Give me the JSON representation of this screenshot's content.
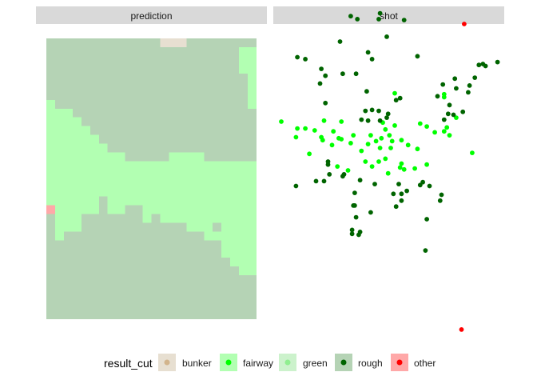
{
  "chart_data": {
    "type": "faceted-heatmap-scatter",
    "facets": [
      "prediction",
      "shot"
    ],
    "colors": {
      "bunker": "#e7dfd1",
      "fairway": "#b2ffb2",
      "green": "#ccf2cc",
      "rough": "#b5d3b5",
      "other": "#ffa8a8"
    },
    "point_colors": {
      "bunker": "#d2b48c",
      "fairway": "#00ff00",
      "green": "#90ee90",
      "rough": "#006400",
      "other": "#ff0000"
    },
    "legend": {
      "title": "result_cut",
      "position": "bottom",
      "entries": [
        {
          "key": "bunker",
          "label": "bunker"
        },
        {
          "key": "fairway",
          "label": "fairway"
        },
        {
          "key": "green",
          "label": "green"
        },
        {
          "key": "rough",
          "label": "rough"
        },
        {
          "key": "other",
          "label": "other"
        }
      ]
    },
    "xlim": [
      0,
      24
    ],
    "ylim": [
      0,
      32
    ],
    "prediction_grid": {
      "ncols": 24,
      "nrows": 32,
      "row_order": "top-to-bottom",
      "fairway_spans_by_row": [
        [],
        [
          [
            22,
            23
          ]
        ],
        [
          [
            22,
            23
          ]
        ],
        [
          [
            22,
            23
          ]
        ],
        [
          [
            23,
            23
          ]
        ],
        [
          [
            23,
            23
          ]
        ],
        [
          [
            23,
            23
          ]
        ],
        [
          [
            0,
            0
          ],
          [
            23,
            23
          ]
        ],
        [
          [
            0,
            2
          ]
        ],
        [
          [
            0,
            3
          ]
        ],
        [
          [
            0,
            4
          ]
        ],
        [
          [
            0,
            5
          ]
        ],
        [
          [
            0,
            6
          ]
        ],
        [
          [
            0,
            8
          ],
          [
            14,
            17
          ]
        ],
        [
          [
            0,
            23
          ]
        ],
        [
          [
            0,
            23
          ]
        ],
        [
          [
            0,
            23
          ]
        ],
        [
          [
            0,
            23
          ]
        ],
        [
          [
            0,
            5
          ],
          [
            7,
            23
          ]
        ],
        [
          [
            1,
            5
          ],
          [
            7,
            8
          ],
          [
            11,
            23
          ]
        ],
        [
          [
            1,
            3
          ],
          [
            11,
            11
          ],
          [
            13,
            23
          ]
        ],
        [
          [
            1,
            3
          ],
          [
            16,
            18
          ],
          [
            20,
            23
          ]
        ],
        [
          [
            1,
            1
          ],
          [
            18,
            23
          ]
        ],
        [
          [
            20,
            23
          ]
        ],
        [
          [
            20,
            23
          ]
        ],
        [
          [
            21,
            23
          ]
        ],
        [
          [
            22,
            23
          ]
        ],
        [],
        [],
        [],
        [],
        []
      ],
      "bunker_spans_by_row": [
        [
          [
            13,
            15
          ]
        ]
      ],
      "other_cells": [
        [
          0,
          19
        ]
      ]
    },
    "shot_points": {
      "fairway": [
        [
          0.1,
          17
        ],
        [
          1.3,
          17.7
        ],
        [
          1.9,
          17.7
        ],
        [
          2.6,
          17.9
        ],
        [
          3.2,
          18.9
        ],
        [
          3.3,
          16.9
        ],
        [
          4.0,
          18.0
        ],
        [
          4.6,
          18.8
        ],
        [
          5.5,
          18.4
        ],
        [
          5.3,
          19.2
        ],
        [
          6.1,
          20.0
        ],
        [
          6.8,
          18.4
        ],
        [
          7.2,
          19.0
        ],
        [
          7.5,
          19.7
        ],
        [
          8.2,
          18.4
        ],
        [
          9.1,
          18.9
        ],
        [
          9.6,
          19.4
        ],
        [
          10.3,
          19.8
        ],
        [
          11.6,
          18.1
        ],
        [
          12.7,
          18.4
        ],
        [
          14.4,
          20.2
        ],
        [
          10.5,
          17.2
        ],
        [
          11.0,
          17.5
        ],
        [
          12.5,
          17.6
        ],
        [
          13.2,
          16.6
        ],
        [
          1.2,
          18.6
        ],
        [
          3.1,
          18.6
        ],
        [
          4.4,
          18.7
        ],
        [
          6.6,
          19.3
        ],
        [
          8.3,
          19.7
        ],
        [
          5.1,
          22.0
        ],
        [
          4.3,
          21.6
        ],
        [
          6.4,
          21.1
        ],
        [
          6.9,
          21.6
        ],
        [
          7.4,
          21.1
        ],
        [
          7.9,
          20.8
        ],
        [
          8.1,
          22.3
        ],
        [
          9.0,
          21.7
        ],
        [
          9.3,
          21.9
        ],
        [
          9.1,
          21.3
        ],
        [
          10.1,
          21.8
        ],
        [
          11.0,
          21.4
        ],
        [
          8.4,
          19.0
        ],
        [
          7.7,
          17.1
        ],
        [
          7.9,
          17.8
        ],
        [
          8.6,
          17.4
        ],
        [
          3.9,
          19.4
        ],
        [
          4.6,
          17.0
        ],
        [
          8.6,
          14.1
        ],
        [
          12.3,
          14.2
        ],
        [
          12.3,
          14.5
        ],
        [
          2.2,
          20.3
        ],
        [
          12.3,
          18.0
        ],
        [
          7.6,
          18.7
        ]
      ],
      "rough": [
        [
          5.3,
          6.2
        ],
        [
          5.8,
          6.5
        ],
        [
          7.5,
          5.9
        ],
        [
          7.4,
          6.5
        ],
        [
          9.3,
          6.6
        ],
        [
          8.0,
          8.3
        ],
        [
          4.5,
          8.8
        ],
        [
          6.6,
          9.9
        ],
        [
          6.9,
          10.6
        ],
        [
          16.3,
          10.9
        ],
        [
          15.2,
          11.1
        ],
        [
          15.4,
          11.3
        ],
        [
          14.9,
          11.2
        ],
        [
          14.6,
          12.5
        ],
        [
          14.2,
          13.3
        ],
        [
          14.1,
          14.0
        ],
        [
          6.5,
          13.9
        ],
        [
          5.7,
          12.1
        ],
        [
          4.7,
          12.1
        ],
        [
          2.7,
          23.1
        ],
        [
          3.7,
          22.4
        ],
        [
          3.6,
          21.1
        ],
        [
          3.6,
          21.4
        ],
        [
          4.8,
          22.4
        ],
        [
          5.5,
          25.6
        ],
        [
          5.6,
          24.3
        ],
        [
          6.0,
          23.0
        ],
        [
          8.9,
          23.4
        ],
        [
          9.1,
          24.4
        ],
        [
          8.7,
          25.7
        ],
        [
          10.5,
          23.5
        ],
        [
          11.0,
          27.0
        ],
        [
          9.5,
          24.1
        ],
        [
          8.5,
          24.4
        ],
        [
          10.7,
          23.2
        ],
        [
          13.2,
          13.6
        ],
        [
          13.1,
          12.6
        ],
        [
          12.2,
          13.2
        ],
        [
          12.1,
          24.5
        ],
        [
          11.2,
          23.6
        ],
        [
          12.0,
          25.1
        ],
        [
          6.8,
          26.3
        ],
        [
          5.7,
          26.8
        ],
        [
          5.4,
          28.1
        ],
        [
          5.4,
          28.5
        ],
        [
          5.9,
          28.6
        ],
        [
          6.0,
          28.3
        ],
        [
          10.9,
          30.2
        ],
        [
          1.3,
          10.4
        ],
        [
          1.9,
          10.6
        ],
        [
          3.1,
          11.6
        ],
        [
          3.0,
          13.1
        ],
        [
          3.4,
          12.3
        ],
        [
          6.4,
          15.9
        ],
        [
          7.4,
          15.9
        ],
        [
          8.7,
          14.8
        ],
        [
          9.0,
          14.6
        ],
        [
          8.1,
          16.2
        ],
        [
          6.9,
          15.8
        ],
        [
          12.6,
          16.2
        ],
        [
          13.0,
          16.3
        ],
        [
          13.7,
          16.0
        ],
        [
          12.7,
          15.3
        ],
        [
          3.4,
          15.1
        ],
        [
          6.6,
          16.9
        ],
        [
          7.5,
          16.9
        ],
        [
          8.0,
          16.6
        ],
        [
          1.2,
          23.6
        ],
        [
          3.3,
          23.1
        ],
        [
          4.7,
          22.6
        ],
        [
          7.1,
          23.4
        ],
        [
          5.6,
          25.6
        ],
        [
          9.1,
          25.1
        ],
        [
          6.1,
          16.8
        ],
        [
          10.3,
          10.3
        ],
        [
          11.8,
          14.4
        ],
        [
          12.3,
          16.8
        ]
      ],
      "other": [
        [
          13.8,
          7.0
        ],
        [
          13.6,
          38.3
        ]
      ]
    },
    "shot_xlim": [
      -0.5,
      16.8
    ],
    "shot_ylim": [
      7.0,
      38.8
    ]
  }
}
